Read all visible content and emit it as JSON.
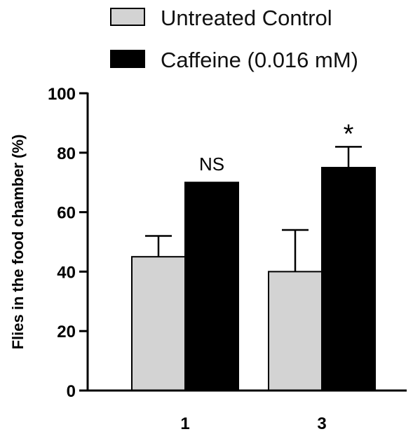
{
  "chart_data": {
    "type": "bar",
    "categories": [
      "1",
      "3"
    ],
    "series": [
      {
        "name": "Untreated Control",
        "values": [
          45,
          40
        ],
        "error_upper": [
          52,
          54
        ],
        "color": "#d3d3d3"
      },
      {
        "name": "Caffeine (0.016 mM)",
        "values": [
          70,
          75
        ],
        "error_upper": [
          70,
          82
        ],
        "color": "#000000"
      }
    ],
    "annotations": [
      {
        "category": "1",
        "text": "NS"
      },
      {
        "category": "3",
        "text": "*"
      }
    ],
    "xlabel": "",
    "ylabel": "Flies in the food chamber (%)",
    "ylim": [
      0,
      100
    ],
    "yticks": [
      0,
      20,
      40,
      60,
      80,
      100
    ],
    "grid": false,
    "legend_position": "top"
  }
}
